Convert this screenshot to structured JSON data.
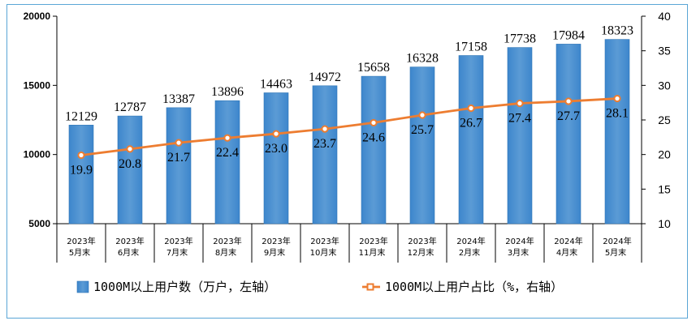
{
  "chart_data": {
    "type": "bar+line",
    "categories": [
      [
        "2023年",
        "5月末"
      ],
      [
        "2023年",
        "6月末"
      ],
      [
        "2023年",
        "7月末"
      ],
      [
        "2023年",
        "8月末"
      ],
      [
        "2023年",
        "9月末"
      ],
      [
        "2023年",
        "10月末"
      ],
      [
        "2023年",
        "11月末"
      ],
      [
        "2023年",
        "12月末"
      ],
      [
        "2024年",
        "2月末"
      ],
      [
        "2024年",
        "3月末"
      ],
      [
        "2024年",
        "4月末"
      ],
      [
        "2024年",
        "5月末"
      ]
    ],
    "series": [
      {
        "name": "1000M以上用户数（万户，左轴）",
        "type": "bar",
        "axis": "left",
        "color": "#5b9bd5",
        "values": [
          12129,
          12787,
          13387,
          13896,
          14463,
          14972,
          15658,
          16328,
          17158,
          17738,
          17984,
          18323
        ]
      },
      {
        "name": "1000M以上用户占比（%，右轴）",
        "type": "line",
        "axis": "right",
        "color": "#ed7d31",
        "values": [
          19.9,
          20.8,
          21.7,
          22.4,
          23.0,
          23.7,
          24.6,
          25.7,
          26.7,
          27.4,
          27.7,
          28.1
        ],
        "labels": [
          "19.9",
          "20.8",
          "21.7",
          "22.4",
          "23.0",
          "23.7",
          "24.6",
          "25.7",
          "26.7",
          "27.4",
          "27.7",
          "28.1"
        ]
      }
    ],
    "left_axis": {
      "range": [
        5000,
        20000
      ],
      "ticks": [
        5000,
        10000,
        15000,
        20000
      ]
    },
    "right_axis": {
      "range": [
        10,
        40
      ],
      "ticks": [
        10,
        15,
        20,
        25,
        30,
        35,
        40
      ]
    },
    "grid": false,
    "legend_position": "bottom"
  }
}
